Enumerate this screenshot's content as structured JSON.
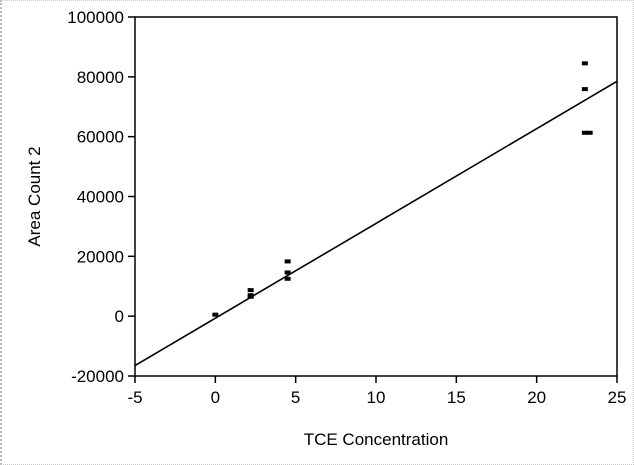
{
  "chart_data": {
    "type": "scatter",
    "title": "",
    "xlabel": "TCE Concentration",
    "ylabel": "Area Count 2",
    "xlim": [
      -5,
      25
    ],
    "ylim": [
      -20000,
      100000
    ],
    "x_ticks": [
      -5,
      0,
      5,
      10,
      15,
      20,
      25
    ],
    "y_ticks": [
      -20000,
      0,
      20000,
      40000,
      60000,
      80000,
      100000
    ],
    "x_tick_labels": [
      "-5",
      "0",
      "5",
      "10",
      "15",
      "20",
      "25"
    ],
    "y_tick_labels": [
      "-20000",
      "0",
      "20000",
      "40000",
      "60000",
      "80000",
      "100000"
    ],
    "grid": false,
    "points": [
      {
        "x": 0,
        "y": 500
      },
      {
        "x": 2.2,
        "y": 6500
      },
      {
        "x": 2.2,
        "y": 7000
      },
      {
        "x": 2.2,
        "y": 8700
      },
      {
        "x": 4.5,
        "y": 12500
      },
      {
        "x": 4.5,
        "y": 14600
      },
      {
        "x": 4.5,
        "y": 18300
      },
      {
        "x": 23,
        "y": 61300
      },
      {
        "x": 23.3,
        "y": 61300
      },
      {
        "x": 23,
        "y": 75900
      },
      {
        "x": 23,
        "y": 84500
      }
    ],
    "fit_line": {
      "x": [
        -5,
        25
      ],
      "y": [
        -16500,
        78500
      ]
    },
    "point_color": "#000000",
    "line_color": "#000000"
  }
}
